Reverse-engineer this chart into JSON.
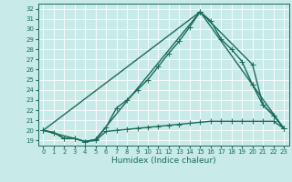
{
  "xlabel": "Humidex (Indice chaleur)",
  "bg_color": "#c8eae8",
  "grid_color": "#ffffff",
  "line_color": "#1a6b5a",
  "xlim": [
    -0.5,
    23.5
  ],
  "ylim": [
    18.5,
    32.5
  ],
  "xticks": [
    0,
    1,
    2,
    3,
    4,
    5,
    6,
    7,
    8,
    9,
    10,
    11,
    12,
    13,
    14,
    15,
    16,
    17,
    18,
    19,
    20,
    21,
    22,
    23
  ],
  "yticks": [
    19,
    20,
    21,
    22,
    23,
    24,
    25,
    26,
    27,
    28,
    29,
    30,
    31,
    32
  ],
  "line_main_x": [
    0,
    1,
    2,
    3,
    4,
    5,
    6,
    7,
    8,
    9,
    10,
    11,
    12,
    13,
    14,
    15,
    16,
    17,
    18,
    19,
    20,
    21,
    22,
    23
  ],
  "line_main_y": [
    20.0,
    19.8,
    19.2,
    19.2,
    18.9,
    19.1,
    20.3,
    22.2,
    23.0,
    24.0,
    25.0,
    26.3,
    27.6,
    28.8,
    30.2,
    31.7,
    30.8,
    29.0,
    28.0,
    26.8,
    24.5,
    22.5,
    21.5,
    20.2
  ],
  "line_flat_x": [
    0,
    1,
    2,
    3,
    4,
    5,
    6,
    7,
    8,
    9,
    10,
    11,
    12,
    13,
    14,
    15,
    16,
    17,
    18,
    19,
    20,
    21,
    22,
    23
  ],
  "line_flat_y": [
    20.0,
    19.8,
    19.2,
    19.2,
    18.9,
    19.0,
    19.9,
    20.0,
    20.1,
    20.2,
    20.3,
    20.4,
    20.5,
    20.6,
    20.7,
    20.8,
    20.9,
    20.9,
    20.9,
    20.9,
    20.9,
    20.9,
    20.9,
    20.2
  ],
  "line_diag1_x": [
    0,
    15,
    20,
    21,
    22,
    23
  ],
  "line_diag1_y": [
    20.0,
    31.7,
    26.5,
    22.5,
    21.5,
    20.2
  ],
  "line_diag2_x": [
    0,
    3,
    4,
    5,
    15,
    20,
    23
  ],
  "line_diag2_y": [
    20.0,
    19.2,
    18.9,
    19.1,
    31.7,
    24.5,
    20.2
  ],
  "marker_style": "+",
  "marker_size": 4,
  "line_width": 1.0,
  "tick_fontsize": 5.0,
  "axis_fontsize": 6.5
}
